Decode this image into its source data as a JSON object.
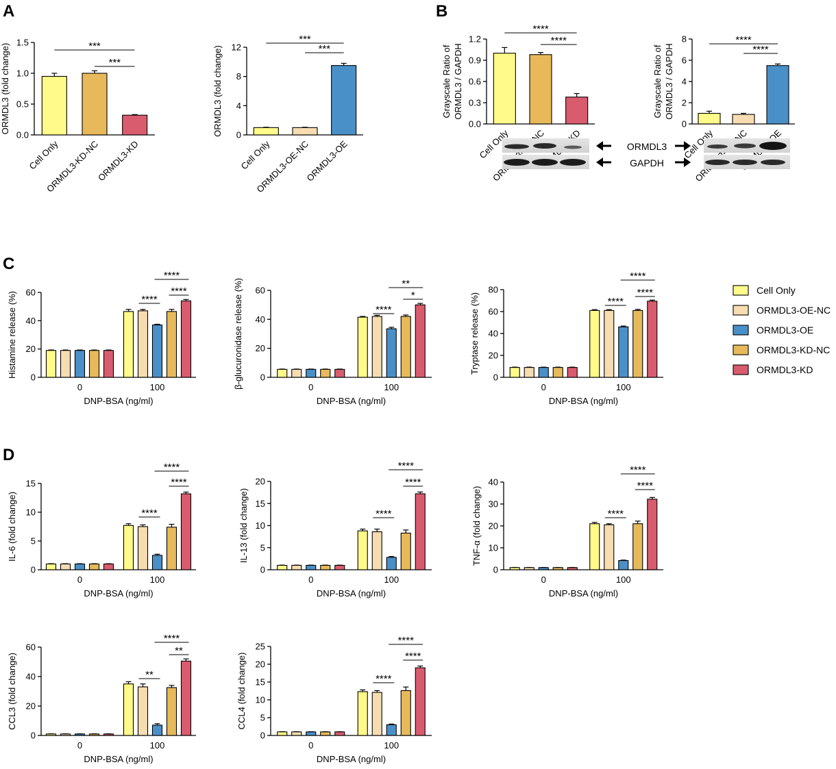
{
  "panel_letters": {
    "a": "A",
    "b": "B",
    "c": "C",
    "d": "D"
  },
  "colors": {
    "cell_only": "#FFFA8A",
    "oe_nc": "#F6DCB0",
    "oe": "#4A90C8",
    "kd_nc": "#E7B95A",
    "kd": "#D95C6E"
  },
  "legend": {
    "items": [
      {
        "label": "Cell Only",
        "color_key": "cell_only"
      },
      {
        "label": "ORMDL3-OE-NC",
        "color_key": "oe_nc"
      },
      {
        "label": "ORMDL3-OE",
        "color_key": "oe"
      },
      {
        "label": "ORMDL3-KD-NC",
        "color_key": "kd_nc"
      },
      {
        "label": "ORMDL3-KD",
        "color_key": "kd"
      }
    ]
  },
  "blot": {
    "protein_label": "ORMDL3",
    "loading_label": "GAPDH"
  },
  "chart_data": [
    {
      "id": "A1",
      "type": "bar",
      "panel": "A",
      "ylabel": "ORMDL3 (fold change)",
      "xlabel": "",
      "ylim": [
        0,
        1.5
      ],
      "yticks": [
        "0.0",
        "0.5",
        "1.0",
        "1.5"
      ],
      "ytick_values": [
        0,
        0.5,
        1.0,
        1.5
      ],
      "categories": [
        "Cell Only",
        "ORMDL3-KD-NC",
        "ORMDL3-KD"
      ],
      "colors": [
        "cell_only",
        "kd_nc",
        "kd"
      ],
      "values": [
        0.95,
        1.0,
        0.32
      ],
      "errors": [
        0.05,
        0.04,
        0.01
      ],
      "sig": [
        {
          "label": "***",
          "from": 0,
          "to": 2,
          "level": 0
        },
        {
          "label": "***",
          "from": 1,
          "to": 2,
          "level": 1
        }
      ]
    },
    {
      "id": "A2",
      "type": "bar",
      "panel": "A",
      "ylabel": "ORMDL3 (fold change)",
      "xlabel": "",
      "ylim": [
        0,
        12
      ],
      "yticks": [
        "0",
        "4",
        "8",
        "12"
      ],
      "ytick_values": [
        0,
        4,
        8,
        12
      ],
      "categories": [
        "Cell Only",
        "ORMDL3-OE-NC",
        "ORMDL3-OE"
      ],
      "colors": [
        "cell_only",
        "oe_nc",
        "oe"
      ],
      "values": [
        1.0,
        1.0,
        9.5
      ],
      "errors": [
        0.05,
        0.05,
        0.3
      ],
      "sig": [
        {
          "label": "***",
          "from": 0,
          "to": 2,
          "level": 0
        },
        {
          "label": "***",
          "from": 1,
          "to": 2,
          "level": 1
        }
      ]
    },
    {
      "id": "B1",
      "type": "bar",
      "panel": "B",
      "ylabel": "Grayscale Ratio of ORMDL3 / GAPDH",
      "xlabel": "",
      "ylim": [
        0,
        1.2
      ],
      "yticks": [
        "0.0",
        "0.3",
        "0.6",
        "0.9",
        "1.2"
      ],
      "ytick_values": [
        0,
        0.3,
        0.6,
        0.9,
        1.2
      ],
      "categories": [
        "Cell Only",
        "ORMDL3-KD-NC",
        "ORMDL3-KD"
      ],
      "colors": [
        "cell_only",
        "kd_nc",
        "kd"
      ],
      "values": [
        1.0,
        0.98,
        0.38
      ],
      "errors": [
        0.08,
        0.03,
        0.05
      ],
      "sig": [
        {
          "label": "****",
          "from": 0,
          "to": 2,
          "level": 0
        },
        {
          "label": "****",
          "from": 1,
          "to": 2,
          "level": 1
        }
      ]
    },
    {
      "id": "B2",
      "type": "bar",
      "panel": "B",
      "ylabel": "Grayscale Ratio of ORMDL3 / GAPDH",
      "xlabel": "",
      "ylim": [
        0,
        8
      ],
      "yticks": [
        "0",
        "2",
        "4",
        "6",
        "8"
      ],
      "ytick_values": [
        0,
        2,
        4,
        6,
        8
      ],
      "categories": [
        "Cell Only",
        "ORMDL3-OE-NC",
        "ORMDL3-OE"
      ],
      "colors": [
        "cell_only",
        "oe_nc",
        "oe"
      ],
      "values": [
        1.0,
        0.9,
        5.5
      ],
      "errors": [
        0.2,
        0.1,
        0.15
      ],
      "sig": [
        {
          "label": "****",
          "from": 0,
          "to": 2,
          "level": 0
        },
        {
          "label": "****",
          "from": 1,
          "to": 2,
          "level": 1
        }
      ]
    },
    {
      "id": "C1",
      "type": "grouped_bar",
      "panel": "C",
      "ylabel": "Histamine release (%)",
      "xlabel": "DNP-BSA (ng/ml)",
      "ylim": [
        0,
        60
      ],
      "yticks": [
        "0",
        "20",
        "40",
        "60"
      ],
      "ytick_values": [
        0,
        20,
        40,
        60
      ],
      "categories": [
        "0",
        "100"
      ],
      "series": [
        {
          "name": "Cell Only",
          "values": [
            19,
            46.5
          ],
          "errors": [
            0.3,
            1.5
          ]
        },
        {
          "name": "ORMDL3-OE-NC",
          "values": [
            19,
            47
          ],
          "errors": [
            0.3,
            1.0
          ]
        },
        {
          "name": "ORMDL3-OE",
          "values": [
            19,
            37
          ],
          "errors": [
            0.3,
            0.5
          ]
        },
        {
          "name": "ORMDL3-KD-NC",
          "values": [
            19,
            46.5
          ],
          "errors": [
            0.3,
            1.5
          ]
        },
        {
          "name": "ORMDL3-KD",
          "values": [
            19,
            54
          ],
          "errors": [
            0.3,
            1.0
          ]
        }
      ],
      "sig": [
        {
          "label": "****",
          "from": 1,
          "to": 2,
          "level": 0
        },
        {
          "label": "****",
          "from": 3,
          "to": 4,
          "level": 1
        },
        {
          "label": "****",
          "from": 2,
          "to": 4,
          "level": 2
        }
      ]
    },
    {
      "id": "C2",
      "type": "grouped_bar",
      "panel": "C",
      "ylabel": "β-glucuronidase release (%)",
      "xlabel": "DNP-BSA (ng/ml)",
      "ylim": [
        0,
        60
      ],
      "yticks": [
        "0",
        "20",
        "40",
        "60"
      ],
      "ytick_values": [
        0,
        20,
        40,
        60
      ],
      "categories": [
        "0",
        "100"
      ],
      "series": [
        {
          "name": "Cell Only",
          "values": [
            5.5,
            41.5
          ],
          "errors": [
            0.2,
            0.5
          ]
        },
        {
          "name": "ORMDL3-OE-NC",
          "values": [
            5.5,
            42
          ],
          "errors": [
            0.2,
            0.8
          ]
        },
        {
          "name": "ORMDL3-OE",
          "values": [
            5.5,
            33.5
          ],
          "errors": [
            0.2,
            1.0
          ]
        },
        {
          "name": "ORMDL3-KD-NC",
          "values": [
            5.5,
            42
          ],
          "errors": [
            0.2,
            1.0
          ]
        },
        {
          "name": "ORMDL3-KD",
          "values": [
            5.5,
            50
          ],
          "errors": [
            0.2,
            1.0
          ]
        }
      ],
      "sig": [
        {
          "label": "****",
          "from": 1,
          "to": 2,
          "level": 0
        },
        {
          "label": "*",
          "from": 3,
          "to": 4,
          "level": 1
        },
        {
          "label": "**",
          "from": 2,
          "to": 4,
          "level": 2
        }
      ]
    },
    {
      "id": "C3",
      "type": "grouped_bar",
      "panel": "C",
      "ylabel": "Tryptase release (%)",
      "xlabel": "DNP-BSA (ng/ml)",
      "ylim": [
        0,
        80
      ],
      "yticks": [
        "0",
        "20",
        "40",
        "60",
        "80"
      ],
      "ytick_values": [
        0,
        20,
        40,
        60,
        80
      ],
      "categories": [
        "0",
        "100"
      ],
      "series": [
        {
          "name": "Cell Only",
          "values": [
            9,
            61
          ],
          "errors": [
            0.3,
            0.8
          ]
        },
        {
          "name": "ORMDL3-OE-NC",
          "values": [
            9,
            61
          ],
          "errors": [
            0.3,
            0.8
          ]
        },
        {
          "name": "ORMDL3-OE",
          "values": [
            9,
            46
          ],
          "errors": [
            0.3,
            0.8
          ]
        },
        {
          "name": "ORMDL3-KD-NC",
          "values": [
            9,
            61
          ],
          "errors": [
            0.3,
            1.0
          ]
        },
        {
          "name": "ORMDL3-KD",
          "values": [
            9,
            69.5
          ],
          "errors": [
            0.3,
            1.0
          ]
        }
      ],
      "sig": [
        {
          "label": "****",
          "from": 1,
          "to": 2,
          "level": 0
        },
        {
          "label": "****",
          "from": 3,
          "to": 4,
          "level": 1
        },
        {
          "label": "****",
          "from": 2,
          "to": 4,
          "level": 2
        }
      ]
    },
    {
      "id": "D1",
      "type": "grouped_bar",
      "panel": "D",
      "ylabel": "IL-6 (fold change)",
      "xlabel": "DNP-BSA (ng/ml)",
      "ylim": [
        0,
        15
      ],
      "yticks": [
        "0",
        "5",
        "10",
        "15"
      ],
      "ytick_values": [
        0,
        5,
        10,
        15
      ],
      "categories": [
        "0",
        "100"
      ],
      "series": [
        {
          "name": "Cell Only",
          "values": [
            1,
            7.7
          ],
          "errors": [
            0.05,
            0.3
          ]
        },
        {
          "name": "ORMDL3-OE-NC",
          "values": [
            1,
            7.5
          ],
          "errors": [
            0.05,
            0.3
          ]
        },
        {
          "name": "ORMDL3-OE",
          "values": [
            1,
            2.5
          ],
          "errors": [
            0.05,
            0.2
          ]
        },
        {
          "name": "ORMDL3-KD-NC",
          "values": [
            1,
            7.4
          ],
          "errors": [
            0.05,
            0.5
          ]
        },
        {
          "name": "ORMDL3-KD",
          "values": [
            1,
            13.2
          ],
          "errors": [
            0.05,
            0.3
          ]
        }
      ],
      "sig": [
        {
          "label": "****",
          "from": 1,
          "to": 2,
          "level": 0
        },
        {
          "label": "****",
          "from": 3,
          "to": 4,
          "level": 1
        },
        {
          "label": "****",
          "from": 2,
          "to": 4,
          "level": 2
        }
      ]
    },
    {
      "id": "D2",
      "type": "grouped_bar",
      "panel": "D",
      "ylabel": "IL-13  (fold change)",
      "xlabel": "DNP-BSA (ng/ml)",
      "ylim": [
        0,
        20
      ],
      "yticks": [
        "0",
        "5",
        "10",
        "15",
        "20"
      ],
      "ytick_values": [
        0,
        5,
        10,
        15,
        20
      ],
      "categories": [
        "0",
        "100"
      ],
      "series": [
        {
          "name": "Cell Only",
          "values": [
            1,
            8.8
          ],
          "errors": [
            0.05,
            0.4
          ]
        },
        {
          "name": "ORMDL3-OE-NC",
          "values": [
            1,
            8.6
          ],
          "errors": [
            0.05,
            0.6
          ]
        },
        {
          "name": "ORMDL3-OE",
          "values": [
            1,
            2.8
          ],
          "errors": [
            0.05,
            0.2
          ]
        },
        {
          "name": "ORMDL3-KD-NC",
          "values": [
            1,
            8.3
          ],
          "errors": [
            0.05,
            0.7
          ]
        },
        {
          "name": "ORMDL3-KD",
          "values": [
            1,
            17.2
          ],
          "errors": [
            0.05,
            0.4
          ]
        }
      ],
      "sig": [
        {
          "label": "****",
          "from": 1,
          "to": 2,
          "level": 0
        },
        {
          "label": "****",
          "from": 3,
          "to": 4,
          "level": 1
        },
        {
          "label": "****",
          "from": 2,
          "to": 4,
          "level": 2
        }
      ]
    },
    {
      "id": "D3",
      "type": "grouped_bar",
      "panel": "D",
      "ylabel": "TNF-α (fold change)",
      "xlabel": "DNP-BSA (ng/ml)",
      "ylim": [
        0,
        40
      ],
      "yticks": [
        "0",
        "10",
        "20",
        "30",
        "40"
      ],
      "ytick_values": [
        0,
        10,
        20,
        30,
        40
      ],
      "categories": [
        "0",
        "100"
      ],
      "series": [
        {
          "name": "Cell Only",
          "values": [
            1,
            21
          ],
          "errors": [
            0.05,
            0.6
          ]
        },
        {
          "name": "ORMDL3-OE-NC",
          "values": [
            1,
            20.5
          ],
          "errors": [
            0.05,
            0.5
          ]
        },
        {
          "name": "ORMDL3-OE",
          "values": [
            1,
            4.2
          ],
          "errors": [
            0.05,
            0.2
          ]
        },
        {
          "name": "ORMDL3-KD-NC",
          "values": [
            1,
            21
          ],
          "errors": [
            0.05,
            1.2
          ]
        },
        {
          "name": "ORMDL3-KD",
          "values": [
            1,
            32.2
          ],
          "errors": [
            0.05,
            0.8
          ]
        }
      ],
      "sig": [
        {
          "label": "****",
          "from": 1,
          "to": 2,
          "level": 0
        },
        {
          "label": "****",
          "from": 3,
          "to": 4,
          "level": 1
        },
        {
          "label": "****",
          "from": 2,
          "to": 4,
          "level": 2
        }
      ]
    },
    {
      "id": "D4",
      "type": "grouped_bar",
      "panel": "D",
      "ylabel": "CCL3 (fold change)",
      "xlabel": "DNP-BSA (ng/ml)",
      "ylim": [
        0,
        60
      ],
      "yticks": [
        "0",
        "20",
        "40",
        "60"
      ],
      "ytick_values": [
        0,
        20,
        40,
        60
      ],
      "categories": [
        "0",
        "100"
      ],
      "series": [
        {
          "name": "Cell Only",
          "values": [
            1,
            35
          ],
          "errors": [
            0.1,
            1.5
          ]
        },
        {
          "name": "ORMDL3-OE-NC",
          "values": [
            1,
            33
          ],
          "errors": [
            0.1,
            2.0
          ]
        },
        {
          "name": "ORMDL3-OE",
          "values": [
            1,
            7
          ],
          "errors": [
            0.1,
            1.0
          ]
        },
        {
          "name": "ORMDL3-KD-NC",
          "values": [
            1,
            32.5
          ],
          "errors": [
            0.1,
            1.5
          ]
        },
        {
          "name": "ORMDL3-KD",
          "values": [
            1,
            50.5
          ],
          "errors": [
            0.1,
            1.5
          ]
        }
      ],
      "sig": [
        {
          "label": "**",
          "from": 1,
          "to": 2,
          "level": 0
        },
        {
          "label": "**",
          "from": 3,
          "to": 4,
          "level": 1
        },
        {
          "label": "****",
          "from": 2,
          "to": 4,
          "level": 2
        }
      ]
    },
    {
      "id": "D5",
      "type": "grouped_bar",
      "panel": "D",
      "ylabel": "CCL4 (fold change)",
      "xlabel": "DNP-BSA (ng/ml)",
      "ylim": [
        0,
        25
      ],
      "yticks": [
        "0",
        "5",
        "10",
        "15",
        "20",
        "25"
      ],
      "ytick_values": [
        0,
        5,
        10,
        15,
        20,
        25
      ],
      "categories": [
        "0",
        "100"
      ],
      "series": [
        {
          "name": "Cell Only",
          "values": [
            1,
            12.3
          ],
          "errors": [
            0.05,
            0.5
          ]
        },
        {
          "name": "ORMDL3-OE-NC",
          "values": [
            1,
            12.1
          ],
          "errors": [
            0.05,
            0.5
          ]
        },
        {
          "name": "ORMDL3-OE",
          "values": [
            1,
            3.0
          ],
          "errors": [
            0.05,
            0.2
          ]
        },
        {
          "name": "ORMDL3-KD-NC",
          "values": [
            1,
            12.6
          ],
          "errors": [
            0.05,
            1.0
          ]
        },
        {
          "name": "ORMDL3-KD",
          "values": [
            1,
            19
          ],
          "errors": [
            0.05,
            0.5
          ]
        }
      ],
      "sig": [
        {
          "label": "****",
          "from": 1,
          "to": 2,
          "level": 0
        },
        {
          "label": "****",
          "from": 3,
          "to": 4,
          "level": 1
        },
        {
          "label": "****",
          "from": 2,
          "to": 4,
          "level": 2
        }
      ]
    }
  ]
}
